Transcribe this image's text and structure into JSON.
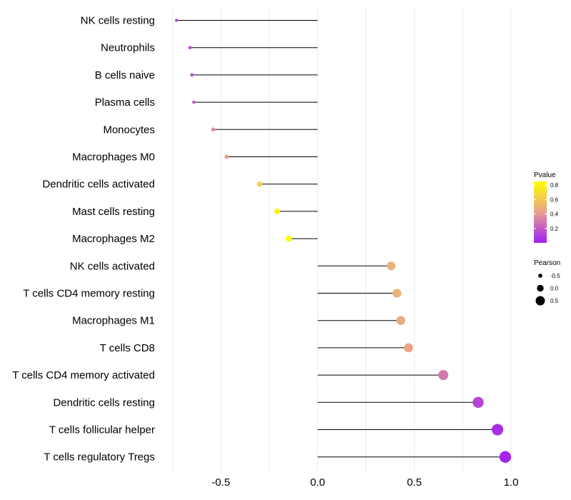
{
  "chart_data": {
    "type": "lollipop",
    "title": "",
    "xlabel": "",
    "ylabel": "",
    "xlim": [
      -0.75,
      1.02
    ],
    "xticks": [
      -0.5,
      0.0,
      0.5,
      1.0
    ],
    "xtick_labels": [
      "-0.5",
      "0.0",
      "0.5",
      "1.0"
    ],
    "categories": [
      "NK cells resting",
      "Neutrophils",
      "B cells naive",
      "Plasma cells",
      "Monocytes",
      "Macrophages M0",
      "Dendritic cells activated",
      "Mast cells resting",
      "Macrophages M2",
      "NK cells activated",
      "T cells CD4 memory resting",
      "Macrophages M1",
      "T cells CD8",
      "T cells CD4 memory activated",
      "Dendritic cells resting",
      "T cells follicular helper",
      "T cells regulatory  Tregs "
    ],
    "pearson": [
      -0.73,
      -0.66,
      -0.65,
      -0.64,
      -0.54,
      -0.47,
      -0.3,
      -0.21,
      -0.15,
      0.38,
      0.41,
      0.43,
      0.47,
      0.65,
      0.83,
      0.93,
      0.97
    ],
    "pvalue": [
      0.1,
      0.15,
      0.15,
      0.2,
      0.35,
      0.45,
      0.65,
      0.8,
      0.85,
      0.5,
      0.5,
      0.48,
      0.45,
      0.3,
      0.12,
      0.05,
      0.02
    ],
    "color_legend": {
      "title": "Pvalue",
      "ticks": [
        0.2,
        0.4,
        0.6,
        0.8
      ],
      "tick_labels": [
        "0.2",
        "0.4",
        "0.6",
        "0.8"
      ],
      "range": [
        0.0,
        0.85
      ],
      "low_color": "#a020f0",
      "mid_color": "#e8a090",
      "high_color": "#ffff00"
    },
    "size_legend": {
      "title": "Pearson",
      "values": [
        -0.5,
        0.0,
        0.5
      ],
      "labels": [
        "-0.5",
        "0.0",
        "0.5"
      ]
    },
    "colors": {
      "gridline": "#ebebeb",
      "segment": "#000000",
      "text": "#000000"
    }
  }
}
